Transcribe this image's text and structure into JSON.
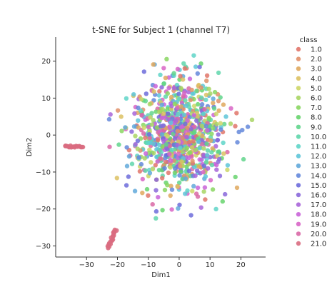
{
  "chart_data": {
    "type": "scatter",
    "title": "t-SNE for Subject 1 (channel T7)",
    "xlabel": "Dim1",
    "ylabel": "Dim2",
    "xlim": [
      -40,
      28
    ],
    "ylim": [
      -33,
      26.5
    ],
    "x_ticks": [
      -30,
      -20,
      -10,
      0,
      10,
      20
    ],
    "y_ticks": [
      -30,
      -20,
      -10,
      0,
      10,
      20
    ],
    "grid": false,
    "legend_title": "class",
    "legend_position": "right, outside plot",
    "series": [
      {
        "name": "1.0",
        "color": "#e1766a"
      },
      {
        "name": "2.0",
        "color": "#e1906a"
      },
      {
        "name": "3.0",
        "color": "#dfa85e"
      },
      {
        "name": "4.0",
        "color": "#dcc163"
      },
      {
        "name": "5.0",
        "color": "#cdd667"
      },
      {
        "name": "6.0",
        "color": "#a8d564"
      },
      {
        "name": "7.0",
        "color": "#8ad662"
      },
      {
        "name": "8.0",
        "color": "#67d46d"
      },
      {
        "name": "9.0",
        "color": "#61d58c"
      },
      {
        "name": "10.0",
        "color": "#5fd6ab"
      },
      {
        "name": "11.0",
        "color": "#5fd5c8"
      },
      {
        "name": "12.0",
        "color": "#5ec5d8"
      },
      {
        "name": "13.0",
        "color": "#62a9da"
      },
      {
        "name": "14.0",
        "color": "#6488db"
      },
      {
        "name": "15.0",
        "color": "#6d6cdb"
      },
      {
        "name": "16.0",
        "color": "#8a68da"
      },
      {
        "name": "17.0",
        "color": "#a865d9"
      },
      {
        "name": "18.0",
        "color": "#c964d8"
      },
      {
        "name": "19.0",
        "color": "#d865c6"
      },
      {
        "name": "20.0",
        "color": "#d968a6"
      },
      {
        "name": "21.0",
        "color": "#d96b80"
      }
    ],
    "clusters": [
      {
        "description": "main blob",
        "series": "mixed (1.0–20.0)",
        "center": [
          0,
          0
        ],
        "spread": [
          12,
          12
        ],
        "radius": 24,
        "count": 900
      },
      {
        "description": "left strip",
        "series": "21.0",
        "x_range": [
          -37,
          -31
        ],
        "y": -3.1,
        "count": 18
      },
      {
        "description": "bottom-left arm",
        "series": "21.0",
        "from": [
          -23,
          -30.5
        ],
        "to": [
          -20.5,
          -25.5
        ],
        "count": 20
      }
    ]
  }
}
